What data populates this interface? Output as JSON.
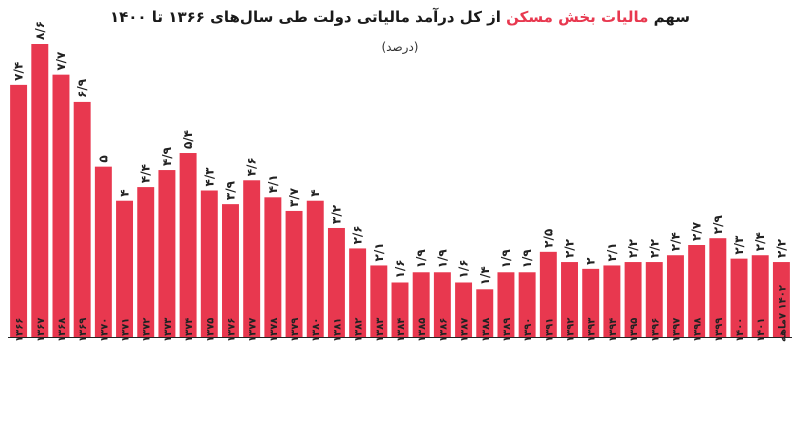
{
  "chart_data": {
    "type": "bar",
    "title_parts": {
      "prefix": "سهم ",
      "highlight": "مالیات بخش مسکن",
      "suffix": " از کل درآمد مالیاتی دولت طی سال‌های ۱۳۶۶ تا ۱۴۰۰"
    },
    "subtitle": "(درصد)",
    "categories": [
      "۱۳۶۶",
      "۱۳۶۷",
      "۱۳۶۸",
      "۱۳۶۹",
      "۱۳۷۰",
      "۱۳۷۱",
      "۱۳۷۲",
      "۱۳۷۳",
      "۱۳۷۴",
      "۱۳۷۵",
      "۱۳۷۶",
      "۱۳۷۷",
      "۱۳۷۸",
      "۱۳۷۹",
      "۱۳۸۰",
      "۱۳۸۱",
      "۱۳۸۲",
      "۱۳۸۳",
      "۱۳۸۴",
      "۱۳۸۵",
      "۱۳۸۶",
      "۱۳۸۷",
      "۱۳۸۸",
      "۱۳۸۹",
      "۱۳۹۰",
      "۱۳۹۱",
      "۱۳۹۲",
      "۱۳۹۳",
      "۱۳۹۴",
      "۱۳۹۵",
      "۱۳۹۶",
      "۱۳۹۷",
      "۱۳۹۸",
      "۱۳۹۹",
      "۱۴۰۰",
      "۱۴۰۱",
      "۱۴۰۲ ۷ماهه"
    ],
    "value_labels": [
      "۷/۴",
      "۸/۶",
      "۷/۷",
      "۶/۹",
      "۵",
      "۴",
      "۴/۴",
      "۴/۹",
      "۵/۴",
      "۴/۳",
      "۳/۹",
      "۴/۶",
      "۴/۱",
      "۳/۷",
      "۴",
      "۳/۲",
      "۲/۶",
      "۲/۱",
      "۱/۶",
      "۱/۹",
      "۱/۹",
      "۱/۶",
      "۱/۴",
      "۱/۹",
      "۱/۹",
      "۲/۵",
      "۲/۲",
      "۲",
      "۲/۱",
      "۲/۲",
      "۲/۲",
      "۲/۴",
      "۲/۷",
      "۲/۹",
      "۲/۳",
      "۲/۴",
      "۲/۲"
    ],
    "values": [
      7.4,
      8.6,
      7.7,
      6.9,
      5.0,
      4.0,
      4.4,
      4.9,
      5.4,
      4.3,
      3.9,
      4.6,
      4.1,
      3.7,
      4.0,
      3.2,
      2.6,
      2.1,
      1.6,
      1.9,
      1.9,
      1.6,
      1.4,
      1.9,
      1.9,
      2.5,
      2.2,
      2.0,
      2.1,
      2.2,
      2.2,
      2.4,
      2.7,
      2.9,
      2.3,
      2.4,
      2.2
    ],
    "ylim": [
      0,
      8.6
    ],
    "colors": {
      "bar": "#e8384f",
      "axis": "#222222"
    },
    "grid": false,
    "legend": "none"
  }
}
